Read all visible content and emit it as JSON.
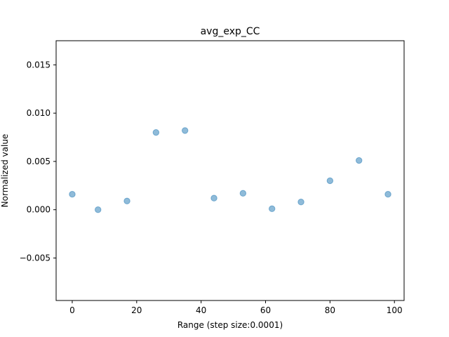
{
  "chart_data": {
    "type": "scatter",
    "title": "avg_exp_CC",
    "xlabel": "Range (step size:0.0001)",
    "ylabel": "Normalized value",
    "xlim": [
      -5,
      103
    ],
    "ylim": [
      -0.0094,
      0.0175
    ],
    "x_ticks": [
      0,
      20,
      40,
      60,
      80,
      100
    ],
    "y_ticks": [
      -0.005,
      0.0,
      0.005,
      0.01,
      0.015
    ],
    "x_tick_labels": [
      "0",
      "20",
      "40",
      "60",
      "80",
      "100"
    ],
    "y_tick_labels": [
      "−0.005",
      "0.000",
      "0.005",
      "0.010",
      "0.015"
    ],
    "grid": false,
    "marker_color": "#1f77b4",
    "marker_alpha": 0.5,
    "points": [
      {
        "x": 0,
        "y": 0.0016
      },
      {
        "x": 8,
        "y": 0.0
      },
      {
        "x": 17,
        "y": 0.0009
      },
      {
        "x": 26,
        "y": 0.008
      },
      {
        "x": 35,
        "y": 0.0082
      },
      {
        "x": 44,
        "y": 0.0012
      },
      {
        "x": 53,
        "y": 0.0017
      },
      {
        "x": 62,
        "y": 0.0001
      },
      {
        "x": 71,
        "y": 0.0008
      },
      {
        "x": 80,
        "y": 0.003
      },
      {
        "x": 89,
        "y": 0.0051
      },
      {
        "x": 98,
        "y": 0.0016
      }
    ]
  }
}
